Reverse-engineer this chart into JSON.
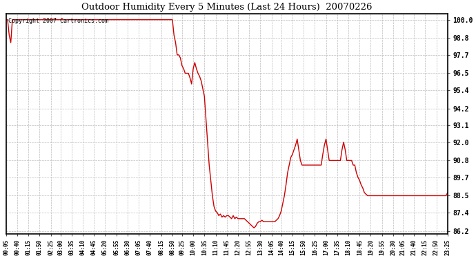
{
  "title": "Outdoor Humidity Every 5 Minutes (Last 24 Hours)  20070226",
  "copyright_text": "Copyright 2007 Cartronics.com",
  "line_color": "#cc0000",
  "background_color": "#ffffff",
  "grid_color": "#bbbbbb",
  "yticks": [
    86.2,
    87.4,
    88.5,
    89.7,
    90.8,
    92.0,
    93.1,
    94.2,
    95.4,
    96.5,
    97.7,
    98.8,
    100.0
  ],
  "ylim": [
    86.0,
    100.4
  ],
  "xtick_labels": [
    "00:05",
    "00:40",
    "01:15",
    "01:50",
    "02:25",
    "03:00",
    "03:35",
    "04:10",
    "04:45",
    "05:20",
    "05:55",
    "06:30",
    "07:05",
    "07:40",
    "08:15",
    "08:50",
    "09:25",
    "10:00",
    "10:35",
    "11:10",
    "11:45",
    "12:20",
    "12:55",
    "13:30",
    "14:05",
    "14:40",
    "15:15",
    "15:50",
    "16:25",
    "17:00",
    "17:35",
    "18:10",
    "18:45",
    "19:20",
    "19:55",
    "20:30",
    "21:05",
    "21:40",
    "22:15",
    "22:50",
    "23:25"
  ],
  "humidity_values": [
    100.0,
    100.0,
    99.0,
    98.5,
    100.0,
    100.0,
    100.0,
    100.0,
    100.0,
    100.0,
    100.0,
    100.0,
    100.0,
    100.0,
    100.0,
    100.0,
    100.0,
    100.0,
    100.0,
    100.0,
    100.0,
    100.0,
    100.0,
    100.0,
    100.0,
    100.0,
    100.0,
    100.0,
    100.0,
    100.0,
    100.0,
    100.0,
    100.0,
    100.0,
    100.0,
    100.0,
    100.0,
    100.0,
    100.0,
    100.0,
    100.0,
    100.0,
    100.0,
    100.0,
    100.0,
    100.0,
    100.0,
    100.0,
    100.0,
    100.0,
    100.0,
    100.0,
    100.0,
    100.0,
    100.0,
    100.0,
    100.0,
    100.0,
    100.0,
    100.0,
    100.0,
    100.0,
    100.0,
    100.0,
    100.0,
    100.0,
    100.0,
    100.0,
    100.0,
    100.0,
    100.0,
    100.0,
    100.0,
    100.0,
    100.0,
    100.0,
    100.0,
    100.0,
    100.0,
    100.0,
    100.0,
    100.0,
    100.0,
    100.0,
    100.0,
    100.0,
    100.0,
    100.0,
    100.0,
    100.0,
    100.0,
    100.0,
    100.0,
    100.0,
    100.0,
    100.0,
    100.0,
    100.0,
    100.0,
    100.0,
    100.0,
    100.0,
    100.0,
    100.0,
    100.0,
    99.0,
    98.5,
    97.7,
    97.7,
    97.5,
    97.0,
    96.8,
    96.5,
    96.5,
    96.5,
    96.2,
    95.8,
    96.8,
    97.2,
    96.8,
    96.5,
    96.3,
    96.0,
    95.5,
    95.0,
    93.5,
    92.0,
    90.5,
    89.5,
    88.5,
    87.8,
    87.5,
    87.4,
    87.2,
    87.3,
    87.1,
    87.2,
    87.1,
    87.2,
    87.2,
    87.1,
    87.0,
    87.2,
    87.0,
    87.1,
    87.0,
    87.0,
    87.0,
    87.0,
    87.0,
    86.9,
    86.8,
    86.7,
    86.6,
    86.5,
    86.4,
    86.5,
    86.7,
    86.8,
    86.8,
    86.9,
    86.8,
    86.8,
    86.8,
    86.8,
    86.8,
    86.8,
    86.8,
    86.8,
    86.9,
    87.0,
    87.2,
    87.5,
    88.0,
    88.5,
    89.2,
    90.0,
    90.5,
    91.0,
    91.2,
    91.5,
    91.8,
    92.2,
    91.5,
    90.8,
    90.5,
    90.5,
    90.5,
    90.5,
    90.5,
    90.5,
    90.5,
    90.5,
    90.5,
    90.5,
    90.5,
    90.5,
    90.5,
    91.2,
    91.8,
    92.2,
    91.5,
    90.8,
    90.8,
    90.8,
    90.8,
    90.8,
    90.8,
    90.8,
    90.8,
    91.5,
    92.0,
    91.5,
    90.8,
    90.8,
    90.8,
    90.8,
    90.5,
    90.5,
    90.0,
    89.7,
    89.5,
    89.2,
    89.0,
    88.7,
    88.6,
    88.5,
    88.5,
    88.5,
    88.5,
    88.5,
    88.5,
    88.5,
    88.5,
    88.5,
    88.5,
    88.5,
    88.5,
    88.5,
    88.5,
    88.5,
    88.5,
    88.5,
    88.5,
    88.5,
    88.5,
    88.5,
    88.5,
    88.5,
    88.5,
    88.5,
    88.5,
    88.5,
    88.5,
    88.5,
    88.5,
    88.5,
    88.5,
    88.5,
    88.5,
    88.5,
    88.5,
    88.5,
    88.5,
    88.5,
    88.5,
    88.5,
    88.5,
    88.5,
    88.5,
    88.5,
    88.5,
    88.5,
    88.5,
    88.5,
    88.5,
    88.7
  ]
}
